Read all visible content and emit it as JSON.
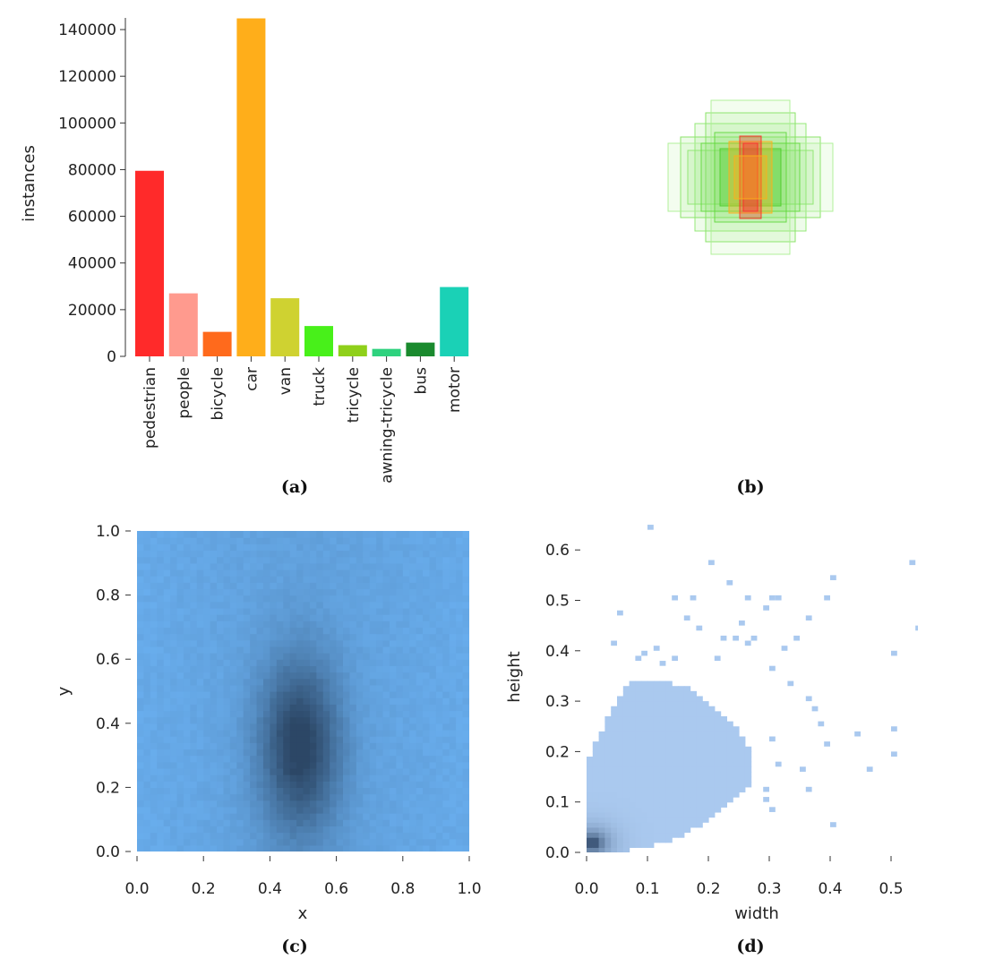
{
  "captions": {
    "a": "(a)",
    "b": "(b)",
    "c": "(c)",
    "d": "(d)"
  },
  "chart_data": [
    {
      "panel": "a",
      "type": "bar",
      "title": "",
      "xlabel": "",
      "ylabel": "instances",
      "ylim": [
        0,
        145000
      ],
      "yticks": [
        0,
        20000,
        40000,
        60000,
        80000,
        100000,
        120000,
        140000
      ],
      "categories": [
        "pedestrian",
        "people",
        "bicycle",
        "car",
        "van",
        "truck",
        "tricycle",
        "awning-tricycle",
        "bus",
        "motor"
      ],
      "values": [
        79500,
        27000,
        10500,
        144800,
        24900,
        13000,
        4800,
        3200,
        5900,
        29700
      ],
      "colors": [
        "#ff2a2a",
        "#ff9a8e",
        "#ff6a1c",
        "#ffae1a",
        "#cfd231",
        "#48f01a",
        "#8fd01a",
        "#2ed27e",
        "#1a8a2e",
        "#1ad1b6"
      ],
      "grid": false
    },
    {
      "panel": "b",
      "type": "heatmap",
      "title": "",
      "description_kind": "overlaid bounding boxes centered at image center",
      "boxes": [
        {
          "w": 0.5,
          "h": 0.72,
          "color": "#7ee05a"
        },
        {
          "w": 0.78,
          "h": 0.45,
          "color": "#7ee05a"
        },
        {
          "w": 0.62,
          "h": 0.6,
          "color": "#8ae66a"
        },
        {
          "w": 0.92,
          "h": 0.38,
          "color": "#a8ee90"
        },
        {
          "w": 0.44,
          "h": 0.86,
          "color": "#a8ee90"
        },
        {
          "w": 0.7,
          "h": 0.3,
          "color": "#8ae66a"
        },
        {
          "w": 0.4,
          "h": 0.5,
          "color": "#5fd83a"
        },
        {
          "w": 0.55,
          "h": 0.38,
          "color": "#5fd83a"
        },
        {
          "w": 0.34,
          "h": 0.32,
          "color": "#4ccc2a"
        },
        {
          "w": 0.24,
          "h": 0.4,
          "color": "#ffae1a"
        },
        {
          "w": 0.12,
          "h": 0.46,
          "color": "#ff2a2a"
        },
        {
          "w": 0.08,
          "h": 0.38,
          "color": "#ff2a2a"
        },
        {
          "w": 0.18,
          "h": 0.24,
          "color": "#ffae1a"
        }
      ]
    },
    {
      "panel": "c",
      "type": "heatmap",
      "title": "",
      "xlabel": "x",
      "ylabel": "y",
      "xlim": [
        0,
        1
      ],
      "ylim": [
        0,
        1
      ],
      "xticks": [
        0.0,
        0.2,
        0.4,
        0.6,
        0.8,
        1.0
      ],
      "yticks": [
        0.0,
        0.2,
        0.4,
        0.6,
        0.8,
        1.0
      ],
      "bins": 50,
      "density_peak": {
        "x": 0.49,
        "y": 0.33,
        "sx": 0.085,
        "sy": 0.19
      },
      "colors": {
        "low": "#69aeee",
        "high": "#2c4766"
      }
    },
    {
      "panel": "d",
      "type": "heatmap",
      "title": "",
      "xlabel": "width",
      "ylabel": "height",
      "xlim": [
        0,
        0.55
      ],
      "ylim": [
        0,
        0.65
      ],
      "xticks": [
        0.0,
        0.1,
        0.2,
        0.3,
        0.4,
        0.5
      ],
      "yticks": [
        0.0,
        0.1,
        0.2,
        0.3,
        0.4,
        0.5,
        0.6
      ],
      "bin_size": 0.01,
      "dense_region_outline": [
        [
          0.0,
          0.0
        ],
        [
          0.0,
          0.18
        ],
        [
          0.04,
          0.28
        ],
        [
          0.07,
          0.34
        ],
        [
          0.12,
          0.34
        ],
        [
          0.16,
          0.33
        ],
        [
          0.2,
          0.3
        ],
        [
          0.24,
          0.26
        ],
        [
          0.27,
          0.2
        ],
        [
          0.27,
          0.14
        ],
        [
          0.24,
          0.1
        ],
        [
          0.2,
          0.06
        ],
        [
          0.15,
          0.03
        ],
        [
          0.1,
          0.01
        ],
        [
          0.05,
          0.0
        ]
      ],
      "core": {
        "x": 0.01,
        "y": 0.02
      },
      "outliers": [
        [
          0.1,
          0.64
        ],
        [
          0.2,
          0.57
        ],
        [
          0.53,
          0.57
        ],
        [
          0.54,
          0.44
        ],
        [
          0.4,
          0.54
        ],
        [
          0.23,
          0.53
        ],
        [
          0.17,
          0.5
        ],
        [
          0.14,
          0.5
        ],
        [
          0.26,
          0.5
        ],
        [
          0.29,
          0.48
        ],
        [
          0.3,
          0.5
        ],
        [
          0.31,
          0.5
        ],
        [
          0.36,
          0.46
        ],
        [
          0.39,
          0.5
        ],
        [
          0.5,
          0.39
        ],
        [
          0.05,
          0.47
        ],
        [
          0.04,
          0.41
        ],
        [
          0.16,
          0.46
        ],
        [
          0.18,
          0.44
        ],
        [
          0.22,
          0.42
        ],
        [
          0.25,
          0.45
        ],
        [
          0.24,
          0.42
        ],
        [
          0.26,
          0.41
        ],
        [
          0.27,
          0.42
        ],
        [
          0.3,
          0.36
        ],
        [
          0.32,
          0.4
        ],
        [
          0.34,
          0.42
        ],
        [
          0.33,
          0.33
        ],
        [
          0.36,
          0.3
        ],
        [
          0.37,
          0.28
        ],
        [
          0.38,
          0.25
        ],
        [
          0.39,
          0.21
        ],
        [
          0.4,
          0.05
        ],
        [
          0.44,
          0.23
        ],
        [
          0.46,
          0.16
        ],
        [
          0.5,
          0.24
        ],
        [
          0.5,
          0.19
        ],
        [
          0.35,
          0.16
        ],
        [
          0.36,
          0.12
        ],
        [
          0.3,
          0.22
        ],
        [
          0.31,
          0.17
        ],
        [
          0.29,
          0.12
        ],
        [
          0.29,
          0.1
        ],
        [
          0.3,
          0.08
        ],
        [
          0.21,
          0.38
        ],
        [
          0.14,
          0.38
        ],
        [
          0.12,
          0.37
        ],
        [
          0.11,
          0.4
        ],
        [
          0.09,
          0.39
        ],
        [
          0.08,
          0.38
        ]
      ],
      "colors": {
        "low": "#aac9ef",
        "high": "#1c3454"
      }
    }
  ]
}
